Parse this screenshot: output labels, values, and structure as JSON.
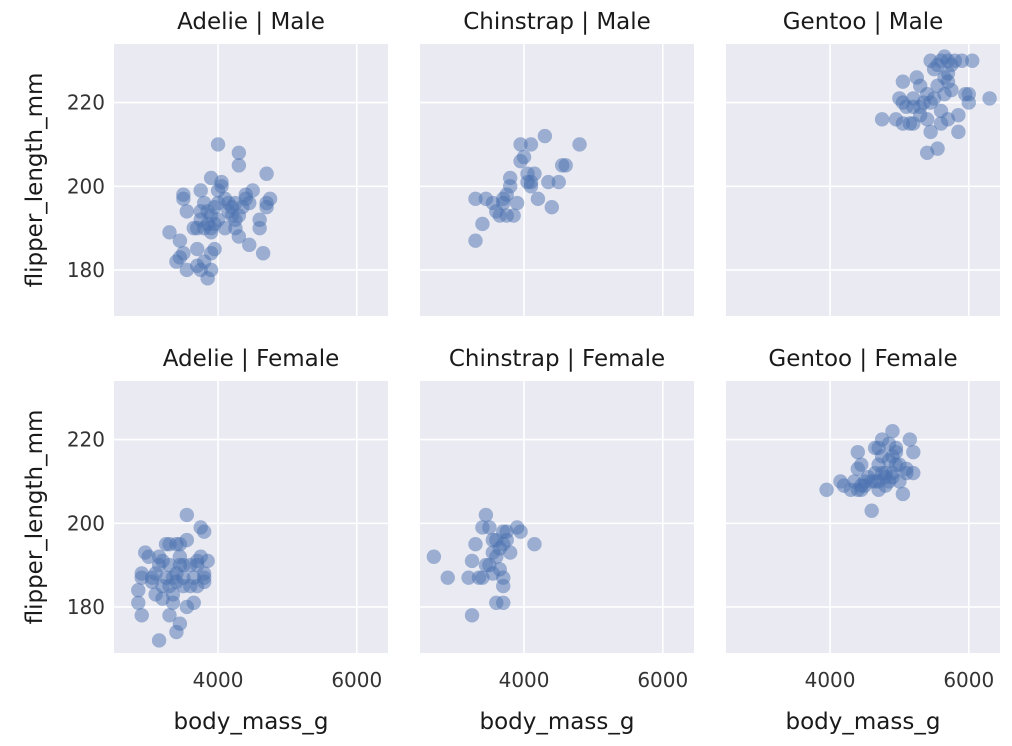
{
  "chart_data": {
    "type": "scatter",
    "x_label": "body_mass_g",
    "y_label": "flipper_length_mm",
    "xlim": [
      2500,
      6450
    ],
    "ylim": [
      169,
      234
    ],
    "x_ticks": [
      4000,
      6000
    ],
    "y_ticks": [
      180,
      200,
      220
    ],
    "grid": true,
    "marker_color": "#4c72b0",
    "panels": [
      {
        "title": "Adelie | Male",
        "points": [
          [
            3300,
            189
          ],
          [
            3450,
            187
          ],
          [
            3400,
            182
          ],
          [
            3450,
            183
          ],
          [
            3500,
            184
          ],
          [
            3550,
            180
          ],
          [
            3700,
            181
          ],
          [
            3750,
            180
          ],
          [
            3800,
            182
          ],
          [
            3850,
            178
          ],
          [
            3900,
            180
          ],
          [
            3900,
            184
          ],
          [
            3950,
            185
          ],
          [
            3500,
            198
          ],
          [
            3500,
            197
          ],
          [
            3550,
            194
          ],
          [
            3650,
            190
          ],
          [
            3700,
            185
          ],
          [
            3700,
            190
          ],
          [
            3750,
            192
          ],
          [
            3750,
            194
          ],
          [
            3800,
            196
          ],
          [
            3800,
            190
          ],
          [
            3850,
            194
          ],
          [
            3850,
            191
          ],
          [
            3900,
            193
          ],
          [
            3900,
            190
          ],
          [
            3900,
            189
          ],
          [
            3950,
            191
          ],
          [
            3950,
            195
          ],
          [
            4000,
            192
          ],
          [
            4000,
            196
          ],
          [
            4000,
            199
          ],
          [
            4050,
            200
          ],
          [
            4050,
            201
          ],
          [
            4100,
            197
          ],
          [
            4100,
            190
          ],
          [
            4150,
            196
          ],
          [
            4150,
            194
          ],
          [
            4200,
            195
          ],
          [
            4200,
            193
          ],
          [
            4250,
            192
          ],
          [
            4250,
            196
          ],
          [
            4250,
            190
          ],
          [
            4300,
            188
          ],
          [
            4300,
            193
          ],
          [
            4350,
            195
          ],
          [
            4400,
            197
          ],
          [
            4400,
            198
          ],
          [
            4450,
            196
          ],
          [
            4450,
            186
          ],
          [
            4500,
            199
          ],
          [
            4600,
            190
          ],
          [
            4600,
            192
          ],
          [
            4650,
            184
          ],
          [
            4700,
            195
          ],
          [
            4700,
            196
          ],
          [
            4750,
            197
          ],
          [
            4700,
            203
          ],
          [
            4000,
            210
          ],
          [
            4300,
            208
          ],
          [
            4300,
            205
          ],
          [
            3900,
            202
          ],
          [
            3750,
            199
          ]
        ]
      },
      {
        "title": "Chinstrap | Male",
        "points": [
          [
            3300,
            187
          ],
          [
            3300,
            197
          ],
          [
            3400,
            191
          ],
          [
            3450,
            197
          ],
          [
            3550,
            196
          ],
          [
            3600,
            194
          ],
          [
            3650,
            193
          ],
          [
            3700,
            197
          ],
          [
            3700,
            196
          ],
          [
            3750,
            193
          ],
          [
            3750,
            198
          ],
          [
            3800,
            200
          ],
          [
            3800,
            202
          ],
          [
            3850,
            193
          ],
          [
            3900,
            196
          ],
          [
            3950,
            206
          ],
          [
            3950,
            210
          ],
          [
            4000,
            207
          ],
          [
            4050,
            203
          ],
          [
            4050,
            201
          ],
          [
            4100,
            200
          ],
          [
            4100,
            201
          ],
          [
            4150,
            203
          ],
          [
            4200,
            197
          ],
          [
            4300,
            212
          ],
          [
            4350,
            201
          ],
          [
            4400,
            195
          ],
          [
            4500,
            201
          ],
          [
            4550,
            205
          ],
          [
            4600,
            205
          ],
          [
            4800,
            210
          ],
          [
            4100,
            210
          ]
        ]
      },
      {
        "title": "Gentoo | Male",
        "points": [
          [
            4750,
            216
          ],
          [
            4950,
            216
          ],
          [
            5000,
            221
          ],
          [
            5050,
            220
          ],
          [
            5050,
            225
          ],
          [
            5050,
            215
          ],
          [
            5100,
            219
          ],
          [
            5150,
            215
          ],
          [
            5200,
            221
          ],
          [
            5200,
            215
          ],
          [
            5250,
            226
          ],
          [
            5300,
            224
          ],
          [
            5300,
            219
          ],
          [
            5350,
            220
          ],
          [
            5400,
            216
          ],
          [
            5400,
            208
          ],
          [
            5400,
            222
          ],
          [
            5450,
            213
          ],
          [
            5500,
            221
          ],
          [
            5500,
            228
          ],
          [
            5550,
            229
          ],
          [
            5550,
            209
          ],
          [
            5550,
            224
          ],
          [
            5600,
            230
          ],
          [
            5600,
            215
          ],
          [
            5650,
            222
          ],
          [
            5650,
            226
          ],
          [
            5650,
            231
          ],
          [
            5700,
            230
          ],
          [
            5700,
            216
          ],
          [
            5700,
            225
          ],
          [
            5750,
            229
          ],
          [
            5750,
            223
          ],
          [
            5800,
            230
          ],
          [
            5850,
            213
          ],
          [
            5850,
            217
          ],
          [
            5900,
            230
          ],
          [
            5950,
            222
          ],
          [
            6000,
            220
          ],
          [
            6000,
            222
          ],
          [
            6050,
            230
          ],
          [
            6300,
            221
          ],
          [
            5450,
            220
          ],
          [
            5600,
            218
          ],
          [
            5200,
            219
          ],
          [
            5700,
            227
          ],
          [
            5450,
            230
          ],
          [
            5300,
            217
          ]
        ]
      },
      {
        "title": "Adelie | Female",
        "points": [
          [
            2850,
            181
          ],
          [
            2850,
            184
          ],
          [
            2900,
            187
          ],
          [
            2900,
            188
          ],
          [
            2900,
            178
          ],
          [
            2950,
            193
          ],
          [
            3000,
            192
          ],
          [
            3050,
            186
          ],
          [
            3050,
            187
          ],
          [
            3100,
            188
          ],
          [
            3100,
            183
          ],
          [
            3150,
            190
          ],
          [
            3150,
            172
          ],
          [
            3200,
            182
          ],
          [
            3200,
            185
          ],
          [
            3200,
            191
          ],
          [
            3250,
            187
          ],
          [
            3250,
            195
          ],
          [
            3300,
            178
          ],
          [
            3300,
            185
          ],
          [
            3300,
            190
          ],
          [
            3300,
            195
          ],
          [
            3350,
            187
          ],
          [
            3350,
            181
          ],
          [
            3400,
            174
          ],
          [
            3400,
            186
          ],
          [
            3400,
            188
          ],
          [
            3400,
            195
          ],
          [
            3450,
            176
          ],
          [
            3450,
            190
          ],
          [
            3450,
            192
          ],
          [
            3450,
            195
          ],
          [
            3500,
            185
          ],
          [
            3500,
            187
          ],
          [
            3500,
            190
          ],
          [
            3550,
            180
          ],
          [
            3550,
            196
          ],
          [
            3550,
            202
          ],
          [
            3600,
            185
          ],
          [
            3600,
            190
          ],
          [
            3650,
            181
          ],
          [
            3650,
            187
          ],
          [
            3700,
            185
          ],
          [
            3700,
            190
          ],
          [
            3700,
            191
          ],
          [
            3750,
            192
          ],
          [
            3750,
            199
          ],
          [
            3800,
            186
          ],
          [
            3800,
            187
          ],
          [
            3800,
            188
          ],
          [
            3850,
            191
          ],
          [
            3800,
            198
          ],
          [
            3150,
            192
          ],
          [
            3350,
            183
          ]
        ]
      },
      {
        "title": "Chinstrap | Female",
        "points": [
          [
            2700,
            192
          ],
          [
            2900,
            187
          ],
          [
            3200,
            187
          ],
          [
            3250,
            178
          ],
          [
            3250,
            191
          ],
          [
            3300,
            195
          ],
          [
            3350,
            187
          ],
          [
            3400,
            187
          ],
          [
            3400,
            199
          ],
          [
            3450,
            202
          ],
          [
            3450,
            190
          ],
          [
            3500,
            199
          ],
          [
            3500,
            190
          ],
          [
            3550,
            196
          ],
          [
            3550,
            193
          ],
          [
            3600,
            181
          ],
          [
            3600,
            192
          ],
          [
            3650,
            189
          ],
          [
            3650,
            194
          ],
          [
            3700,
            187
          ],
          [
            3700,
            185
          ],
          [
            3700,
            181
          ],
          [
            3700,
            195
          ],
          [
            3700,
            198
          ],
          [
            3750,
            198
          ],
          [
            3750,
            196
          ],
          [
            3800,
            193
          ],
          [
            3900,
            199
          ],
          [
            3950,
            198
          ],
          [
            4150,
            195
          ],
          [
            3550,
            188
          ],
          [
            3600,
            196
          ]
        ]
      },
      {
        "title": "Gentoo | Female",
        "points": [
          [
            3950,
            208
          ],
          [
            4150,
            210
          ],
          [
            4200,
            209
          ],
          [
            4300,
            208
          ],
          [
            4350,
            210
          ],
          [
            4400,
            208
          ],
          [
            4400,
            213
          ],
          [
            4400,
            217
          ],
          [
            4450,
            208
          ],
          [
            4450,
            209
          ],
          [
            4500,
            209
          ],
          [
            4500,
            210
          ],
          [
            4550,
            211
          ],
          [
            4600,
            210
          ],
          [
            4600,
            203
          ],
          [
            4650,
            210
          ],
          [
            4650,
            212
          ],
          [
            4700,
            208
          ],
          [
            4700,
            210
          ],
          [
            4700,
            214
          ],
          [
            4700,
            218
          ],
          [
            4750,
            212
          ],
          [
            4750,
            216
          ],
          [
            4750,
            220
          ],
          [
            4800,
            209
          ],
          [
            4800,
            212
          ],
          [
            4850,
            210
          ],
          [
            4850,
            215
          ],
          [
            4850,
            219
          ],
          [
            4900,
            212
          ],
          [
            4900,
            216
          ],
          [
            4900,
            222
          ],
          [
            4950,
            214
          ],
          [
            4950,
            217
          ],
          [
            5000,
            210
          ],
          [
            5000,
            214
          ],
          [
            5050,
            207
          ],
          [
            5100,
            212
          ],
          [
            5100,
            213
          ],
          [
            5150,
            220
          ],
          [
            5200,
            212
          ],
          [
            5200,
            217
          ],
          [
            4450,
            214
          ],
          [
            4650,
            218
          ],
          [
            4800,
            211
          ],
          [
            4900,
            211
          ],
          [
            4950,
            218
          ]
        ]
      }
    ]
  }
}
